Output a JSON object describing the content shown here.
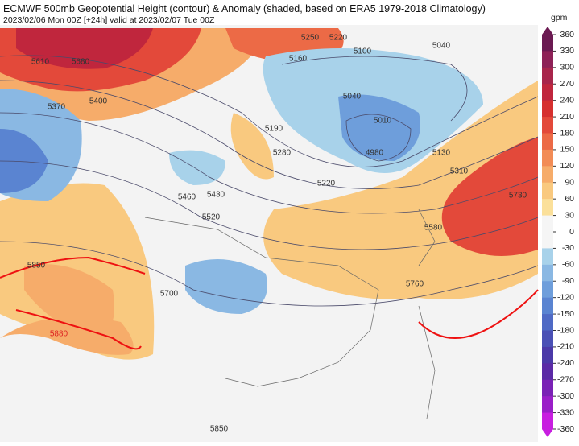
{
  "title": "ECMWF 500mb Geopotential Height (contour) & Anomaly (shaded, based on ERA5 1979-2018 Climatology)",
  "subtitle": "2023/02/06 Mon 00Z [+24h] valid at 2023/02/07 Tue 00Z",
  "colorbar": {
    "unit": "gpm",
    "ticks": [
      360,
      330,
      300,
      270,
      240,
      210,
      180,
      150,
      120,
      90,
      60,
      30,
      0,
      -30,
      -60,
      -90,
      -120,
      -150,
      -180,
      -210,
      -240,
      -270,
      -300,
      -330,
      -360
    ],
    "colors": [
      "#6b1a52",
      "#8e2157",
      "#a8254b",
      "#c0263d",
      "#d6302f",
      "#e3493a",
      "#ec6a46",
      "#f28c56",
      "#f6ac6a",
      "#f9c97f",
      "#fbe09a",
      "#f5f5f5",
      "#f5f5f5",
      "#a8d2ea",
      "#8ab8e3",
      "#6e9edb",
      "#5a84d1",
      "#4f6ac5",
      "#4a50b5",
      "#4b39a8",
      "#5b2aa6",
      "#7a21b5",
      "#9a1ec8",
      "#c81ee0"
    ]
  },
  "contour_labels": [
    5610,
    5680,
    5400,
    5370,
    5250,
    5220,
    5160,
    5100,
    5040,
    5040,
    5010,
    4980,
    5190,
    5280,
    5220,
    5130,
    5310,
    5730,
    5460,
    5430,
    5520,
    5580,
    5850,
    5700,
    5760,
    5880,
    5850
  ]
}
